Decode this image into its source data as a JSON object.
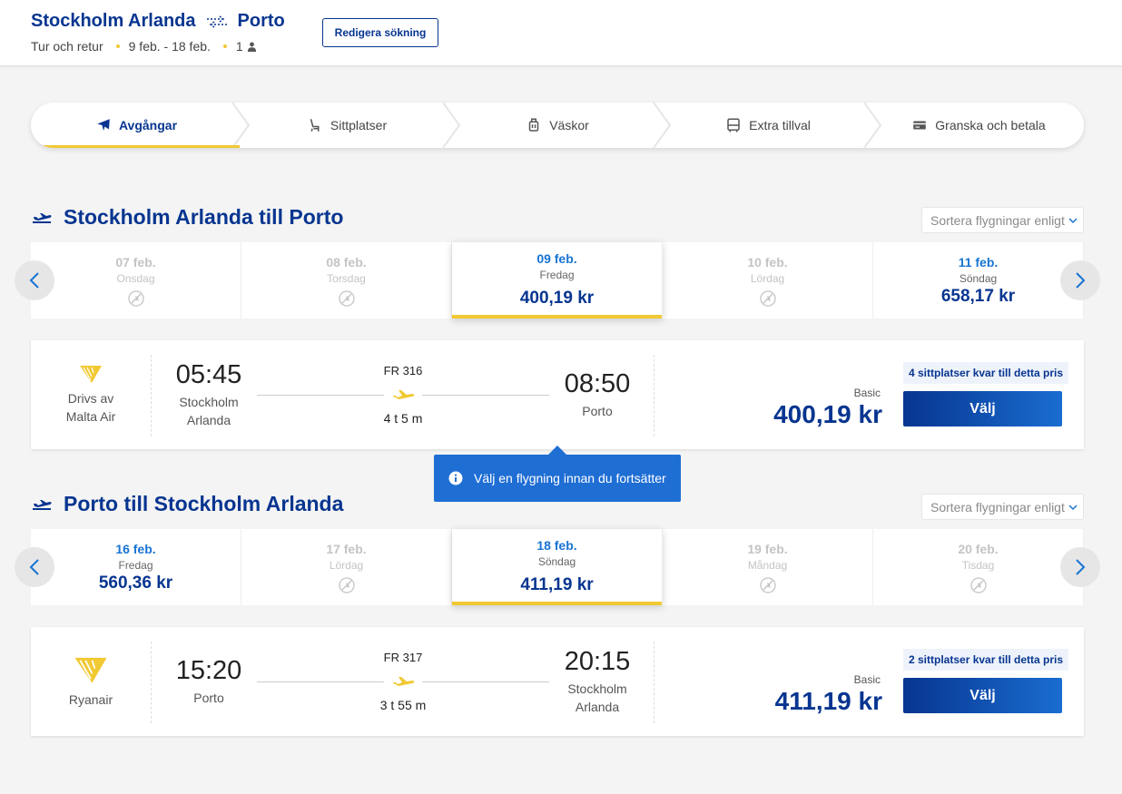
{
  "header": {
    "origin": "Stockholm Arlanda",
    "destination": "Porto",
    "trip_type": "Tur och retur",
    "dates": "9 feb. - 18 feb.",
    "passengers": "1",
    "edit_label": "Redigera sökning"
  },
  "stepper": [
    {
      "label": "Avgångar",
      "icon": "plane-icon",
      "active": true
    },
    {
      "label": "Sittplatser",
      "icon": "seat-icon",
      "active": false
    },
    {
      "label": "Väskor",
      "icon": "luggage-icon",
      "active": false
    },
    {
      "label": "Extra tillval",
      "icon": "bus-icon",
      "active": false
    },
    {
      "label": "Granska och betala",
      "icon": "card-icon",
      "active": false
    }
  ],
  "outbound": {
    "title": "Stockholm Arlanda till Porto",
    "sort_label": "Sortera flygningar enligt",
    "dates": [
      {
        "date": "07 feb.",
        "weekday": "Onsdag",
        "price": null
      },
      {
        "date": "08 feb.",
        "weekday": "Torsdag",
        "price": null
      },
      {
        "date": "09 feb.",
        "weekday": "Fredag",
        "price": "400,19 kr",
        "selected": true
      },
      {
        "date": "10 feb.",
        "weekday": "Lördag",
        "price": null
      },
      {
        "date": "11 feb.",
        "weekday": "Söndag",
        "price": "658,17 kr"
      }
    ],
    "flight": {
      "operator_line1": "Drivs av",
      "operator_line2": "Malta Air",
      "dep_time": "05:45",
      "dep_place1": "Stockholm",
      "dep_place2": "Arlanda",
      "flight_no": "FR 316",
      "duration": "4 t 5 m",
      "arr_time": "08:50",
      "arr_place1": "Porto",
      "arr_place2": "",
      "seats_left": "4 sittplatser kvar till detta pris",
      "fare": "Basic",
      "price": "400,19 kr",
      "select_label": "Välj"
    }
  },
  "tooltip": "Välj en flygning innan du fortsätter",
  "inbound": {
    "title": "Porto till Stockholm Arlanda",
    "sort_label": "Sortera flygningar enligt",
    "dates": [
      {
        "date": "16 feb.",
        "weekday": "Fredag",
        "price": "560,36 kr"
      },
      {
        "date": "17 feb.",
        "weekday": "Lördag",
        "price": null
      },
      {
        "date": "18 feb.",
        "weekday": "Söndag",
        "price": "411,19 kr",
        "selected": true
      },
      {
        "date": "19 feb.",
        "weekday": "Måndag",
        "price": null
      },
      {
        "date": "20 feb.",
        "weekday": "Tisdag",
        "price": null
      }
    ],
    "flight": {
      "operator_line1": "Ryanair",
      "operator_line2": "",
      "dep_time": "15:20",
      "dep_place1": "Porto",
      "dep_place2": "",
      "flight_no": "FR 317",
      "duration": "3 t 55 m",
      "arr_time": "20:15",
      "arr_place1": "Stockholm",
      "arr_place2": "Arlanda",
      "seats_left": "2 sittplatser kvar till detta pris",
      "fare": "Basic",
      "price": "411,19 kr",
      "select_label": "Välj"
    }
  },
  "colors": {
    "brand": "#073590",
    "accent": "#f1c933",
    "link": "#1874d2",
    "tooltip": "#1f6ed4"
  }
}
